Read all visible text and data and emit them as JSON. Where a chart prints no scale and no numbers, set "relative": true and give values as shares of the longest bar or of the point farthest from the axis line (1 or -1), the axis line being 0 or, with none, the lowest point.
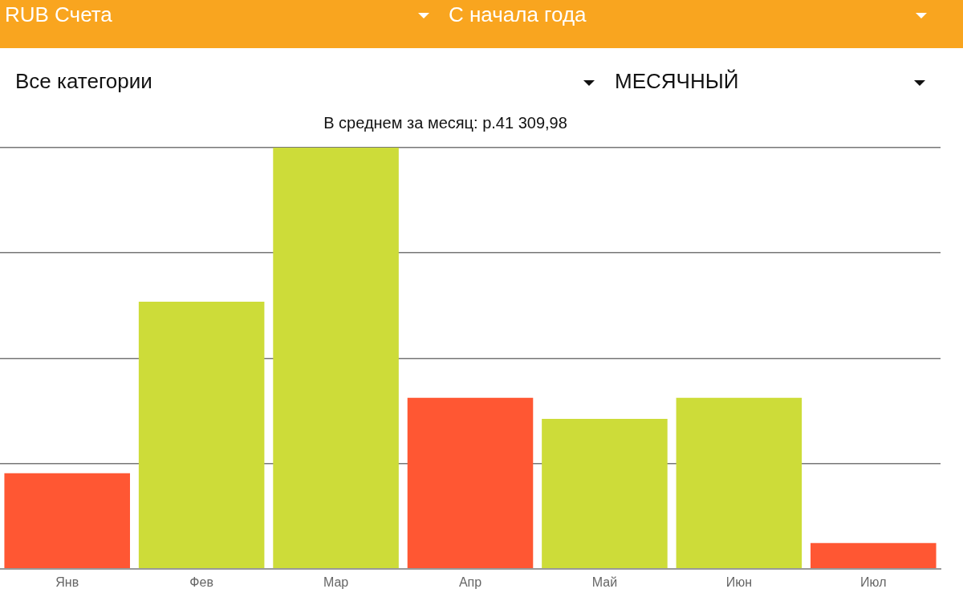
{
  "chart_data": {
    "type": "bar",
    "title": "В среднем за месяц: р.41 309,98",
    "categories": [
      "Янв",
      "Фев",
      "Мар",
      "Апр",
      "Май",
      "Июн",
      "Июл"
    ],
    "values": [
      0.227,
      0.634,
      1,
      0.406,
      0.356,
      0.406,
      0.061
    ],
    "colors": [
      "#ff5733",
      "#cddc39",
      "#cddc39",
      "#ff5733",
      "#cddc39",
      "#cddc39",
      "#ff5733"
    ],
    "relative": true,
    "grid": "y",
    "legend": false,
    "annotations": [
      "RUB Счета",
      "С начала года",
      "Все категории",
      "МЕСЯЧНЫЙ"
    ]
  }
}
